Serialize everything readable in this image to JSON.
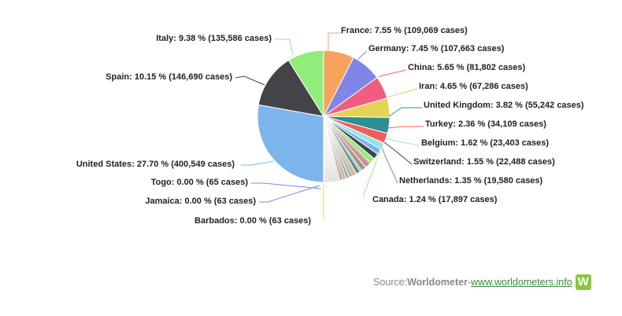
{
  "chart_data": {
    "type": "pie",
    "title": "",
    "slices": [
      {
        "name": "United States",
        "label": "United States: 27.70 % (400,549 cases)",
        "value": 27.7,
        "color": "#7cb5ec"
      },
      {
        "name": "Spain",
        "label": "Spain: 10.15 % (146,690 cases)",
        "value": 10.15,
        "color": "#434348"
      },
      {
        "name": "Italy",
        "label": "Italy: 9.38 % (135,586 cases)",
        "value": 9.38,
        "color": "#90ed7d"
      },
      {
        "name": "France",
        "label": "France: 7.55 % (109,069 cases)",
        "value": 7.55,
        "color": "#f7a35c"
      },
      {
        "name": "Germany",
        "label": "Germany: 7.45 % (107,663 cases)",
        "value": 7.45,
        "color": "#8085e9"
      },
      {
        "name": "China",
        "label": "China: 5.65 % (81,802 cases)",
        "value": 5.65,
        "color": "#f15c80"
      },
      {
        "name": "Iran",
        "label": "Iran: 4.65 % (67,286 cases)",
        "value": 4.65,
        "color": "#e4d354"
      },
      {
        "name": "United Kingdom",
        "label": "United Kingdom: 3.82 % (55,242 cases)",
        "value": 3.82,
        "color": "#2b908f"
      },
      {
        "name": "Turkey",
        "label": "Turkey: 2.36 % (34,109 cases)",
        "value": 2.36,
        "color": "#f45b5b"
      },
      {
        "name": "Belgium",
        "label": "Belgium: 1.62 % (23,403 cases)",
        "value": 1.62,
        "color": "#91e8e1"
      },
      {
        "name": "Switzerland",
        "label": "Switzerland: 1.55 % (22,488 cases)",
        "value": 1.55,
        "color": "#7cb5ec"
      },
      {
        "name": "Netherlands",
        "label": "Netherlands: 1.35 % (19,580 cases)",
        "value": 1.35,
        "color": "#434348"
      },
      {
        "name": "Canada",
        "label": "Canada: 1.24 % (17,897 cases)",
        "value": 1.24,
        "color": "#90ed7d"
      },
      {
        "name": "Barbados",
        "label": "Barbados: 0.00 % (63 cases)",
        "value": 0.0,
        "color": "#f7a35c"
      },
      {
        "name": "Jamaica",
        "label": "Jamaica: 0.00 % (63 cases)",
        "value": 0.0,
        "color": "#8085e9"
      },
      {
        "name": "Togo",
        "label": "Togo: 0.00 % (65 cases)",
        "value": 0.0,
        "color": "#f15c80"
      }
    ],
    "other_countries_small_slices_colors": [
      "#f7a35c",
      "#8085e9",
      "#f15c80",
      "#e4d354",
      "#2b908f",
      "#f45b5b",
      "#91e8e1",
      "#7cb5ec",
      "#434348",
      "#90ed7d"
    ],
    "connector_colors": {
      "United States": "#7cb5ec",
      "Spain": "#434348",
      "Italy": "#90ed7d",
      "France": "#f7a35c",
      "Germany": "#8085e9",
      "China": "#f15c80",
      "Iran": "#e4d354",
      "United Kingdom": "#2b908f",
      "Turkey": "#f45b5b",
      "Belgium": "#91e8e1",
      "Switzerland": "#434348",
      "Netherlands": "#8085e9",
      "Canada": "#90ed7d",
      "Barbados": "#e4d354",
      "Jamaica": "#8085e9",
      "Togo": "#8085e9"
    }
  },
  "source": {
    "prefix": "Source: ",
    "brand": "Worldometer",
    "separator": " - ",
    "link_text": "www.worldometers.info",
    "logo_letter": "W"
  }
}
